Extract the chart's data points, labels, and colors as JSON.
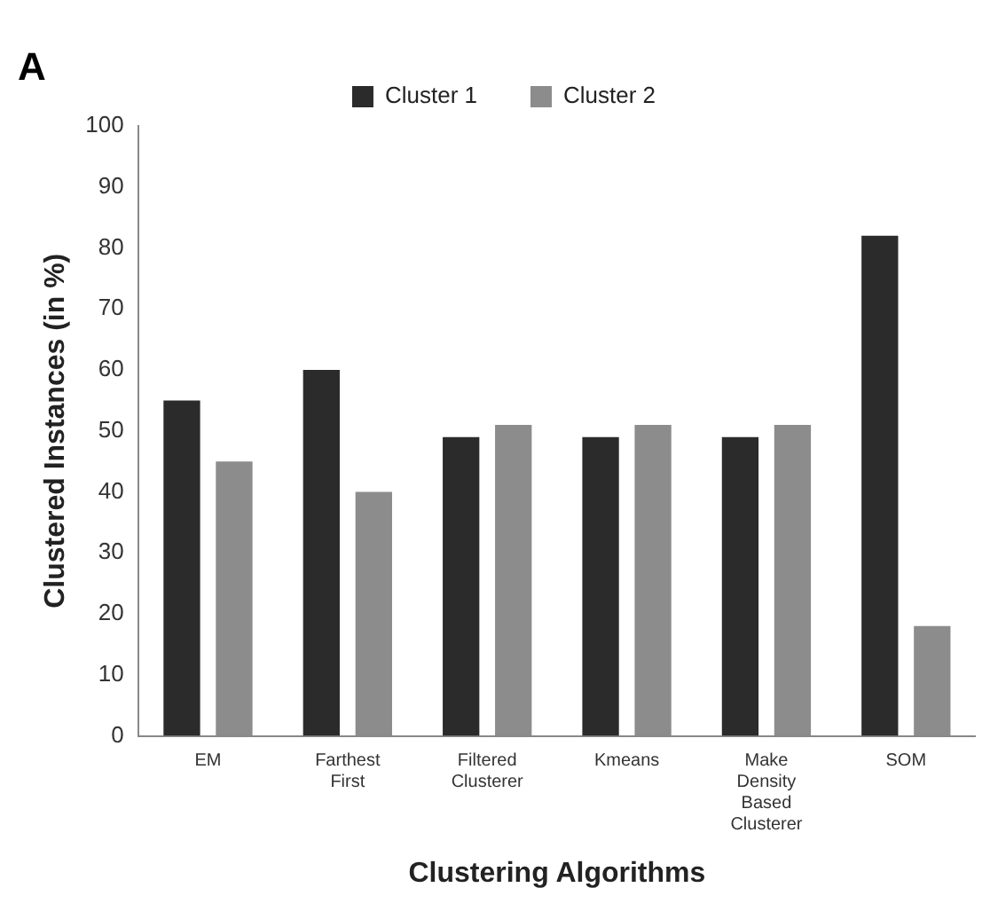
{
  "chart_data": {
    "type": "bar",
    "xlabel": "Clustering Algorithms",
    "ylabel": "Clustered Instances (in %)",
    "annotations": [
      "A"
    ],
    "categories": [
      "EM",
      "Farthest First",
      "Filtered Clusterer",
      "Kmeans",
      "Make Density Based Clusterer",
      "SOM"
    ],
    "series": [
      {
        "name": "Cluster 1",
        "color": "#2b2b2b",
        "values": [
          55,
          60,
          49,
          49,
          49,
          82
        ]
      },
      {
        "name": "Cluster 2",
        "color": "#8c8c8c",
        "values": [
          45,
          40,
          51,
          51,
          51,
          18
        ]
      }
    ],
    "ylim": [
      0,
      100
    ],
    "yticks": [
      0,
      10,
      20,
      30,
      40,
      50,
      60,
      70,
      80,
      90,
      100
    ],
    "grid": false,
    "legend": "top"
  }
}
